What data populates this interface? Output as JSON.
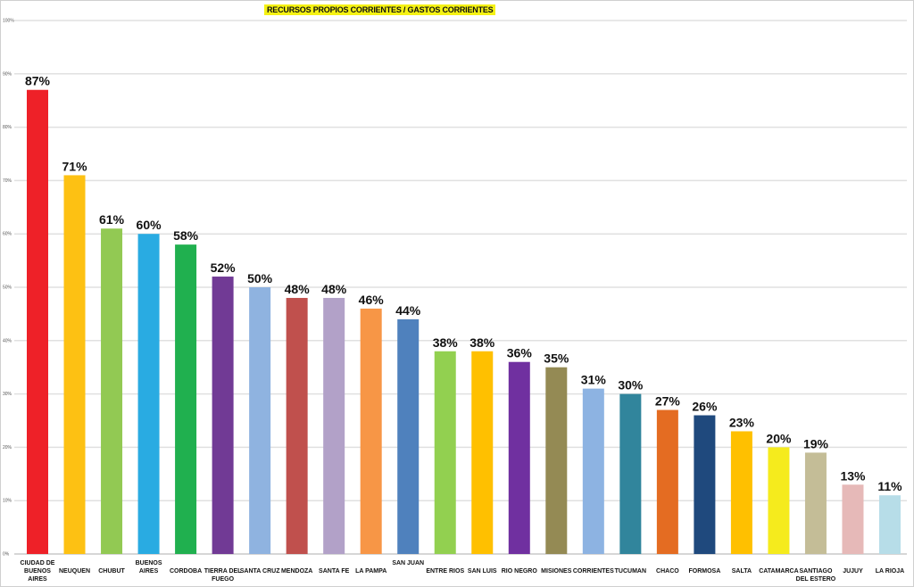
{
  "chart_data": {
    "type": "bar",
    "title": "RECURSOS PROPIOS CORRIENTES / GASTOS CORRIENTES",
    "xlabel": "",
    "ylabel": "",
    "ylim": [
      0,
      100
    ],
    "yticks": [
      "0%",
      "10%",
      "20%",
      "30%",
      "40%",
      "50%",
      "60%",
      "70%",
      "80%",
      "90%",
      "100%"
    ],
    "grid": true,
    "categories": [
      "CIUDAD DE BUENOS AIRES",
      "NEUQUEN",
      "CHUBUT",
      "BUENOS AIRES",
      "CORDOBA",
      "TIERRA DEL FUEGO",
      "SANTA CRUZ",
      "MENDOZA",
      "SANTA FE",
      "LA PAMPA",
      "SAN JUAN",
      "ENTRE RIOS",
      "SAN LUIS",
      "RIO NEGRO",
      "MISIONES",
      "CORRIENTES",
      "TUCUMAN",
      "CHACO",
      "FORMOSA",
      "SALTA",
      "CATAMARCA",
      "SANTIAGO DEL ESTERO",
      "JUJUY",
      "LA RIOJA"
    ],
    "values": [
      87,
      71,
      61,
      60,
      58,
      52,
      50,
      48,
      48,
      46,
      44,
      38,
      38,
      36,
      35,
      31,
      30,
      27,
      26,
      23,
      20,
      19,
      13,
      11
    ],
    "data_labels": [
      "87%",
      "71%",
      "61%",
      "60%",
      "58%",
      "52%",
      "50%",
      "48%",
      "48%",
      "46%",
      "44%",
      "38%",
      "38%",
      "36%",
      "35%",
      "31%",
      "30%",
      "27%",
      "26%",
      "23%",
      "20%",
      "19%",
      "13%",
      "11%"
    ],
    "colors": [
      "#ee2128",
      "#fdc113",
      "#92c953",
      "#29abe2",
      "#20b04f",
      "#713a95",
      "#8fb3e0",
      "#c0504d",
      "#b2a1c8",
      "#f79646",
      "#4f81bd",
      "#92d050",
      "#ffc000",
      "#7030a0",
      "#948a54",
      "#8db3e2",
      "#31859c",
      "#e46c22",
      "#1f497d",
      "#ffc000",
      "#f5eb1d",
      "#c4bd97",
      "#e6b9b8",
      "#b7dde8"
    ]
  }
}
